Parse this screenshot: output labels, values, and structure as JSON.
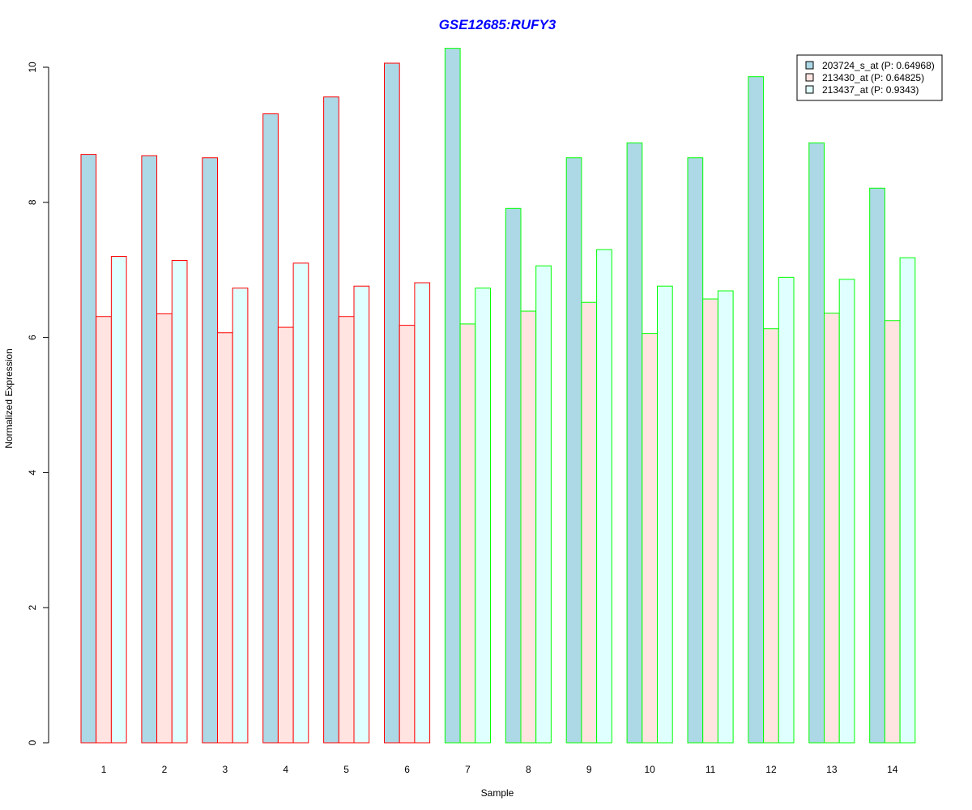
{
  "chart_data": {
    "type": "bar",
    "title": "GSE12685:RUFY3",
    "xlabel": "Sample",
    "ylabel": "Normalized Expression",
    "categories": [
      "1",
      "2",
      "3",
      "4",
      "5",
      "6",
      "7",
      "8",
      "9",
      "10",
      "11",
      "12",
      "13",
      "14"
    ],
    "ylim": [
      0,
      10.25
    ],
    "yticks": [
      0,
      2,
      4,
      6,
      8,
      10
    ],
    "series": [
      {
        "name": "203724_s_at (P: 0.64968)",
        "fill": "#add8e6",
        "values": [
          8.71,
          8.69,
          8.66,
          9.31,
          9.56,
          10.06,
          10.28,
          7.91,
          8.66,
          8.88,
          8.66,
          9.86,
          8.88,
          8.21
        ]
      },
      {
        "name": "213430_at (P: 0.64825)",
        "fill": "#ffe4e1",
        "values": [
          6.31,
          6.35,
          6.07,
          6.15,
          6.31,
          6.18,
          6.2,
          6.39,
          6.52,
          6.06,
          6.57,
          6.13,
          6.36,
          6.25
        ]
      },
      {
        "name": "213437_at (P: 0.9343)",
        "fill": "#e0ffff",
        "values": [
          7.2,
          7.14,
          6.73,
          7.1,
          6.76,
          6.81,
          6.73,
          7.06,
          7.3,
          6.76,
          6.69,
          6.89,
          6.86,
          7.18
        ]
      }
    ],
    "group_border_colors": [
      "#ff0000",
      "#ff0000",
      "#ff0000",
      "#ff0000",
      "#ff0000",
      "#ff0000",
      "#00ff00",
      "#00ff00",
      "#00ff00",
      "#00ff00",
      "#00ff00",
      "#00ff00",
      "#00ff00",
      "#00ff00"
    ],
    "title_color": "#0000ff",
    "legend_position": "top-right",
    "grid": false
  }
}
